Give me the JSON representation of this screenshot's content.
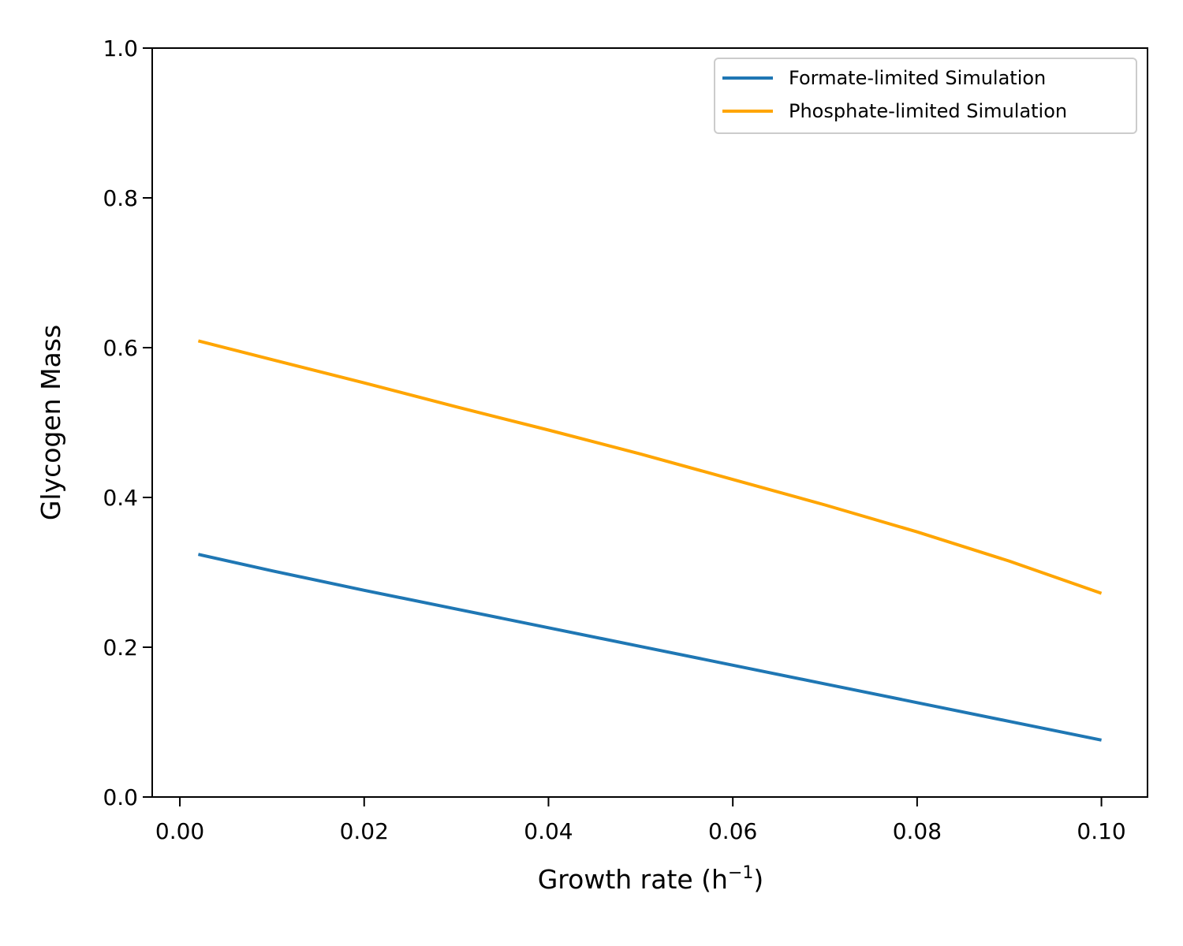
{
  "chart_data": {
    "type": "line",
    "title": "",
    "xlabel": "Growth rate (h",
    "xlabel_superscript": "−1",
    "xlabel_suffix": ")",
    "ylabel": "Glycogen Mass",
    "xlim": [
      -0.003,
      0.105
    ],
    "ylim": [
      0.0,
      1.0
    ],
    "x_ticks": [
      0.0,
      0.02,
      0.04,
      0.06,
      0.08,
      0.1
    ],
    "x_tick_labels": [
      "0.00",
      "0.02",
      "0.04",
      "0.06",
      "0.08",
      "0.10"
    ],
    "y_ticks": [
      0.0,
      0.2,
      0.4,
      0.6,
      0.8,
      1.0
    ],
    "y_tick_labels": [
      "0.0",
      "0.2",
      "0.4",
      "0.6",
      "0.8",
      "1.0"
    ],
    "grid": false,
    "legend_position": "top-right",
    "x": [
      0.002,
      0.01,
      0.02,
      0.03,
      0.04,
      0.05,
      0.06,
      0.07,
      0.08,
      0.09,
      0.1
    ],
    "series": [
      {
        "name": "Formate-limited Simulation",
        "color": "#1f77b4",
        "values": [
          0.324,
          0.302,
          0.276,
          0.251,
          0.226,
          0.201,
          0.176,
          0.151,
          0.126,
          0.101,
          0.076
        ]
      },
      {
        "name": "Phosphate-limited Simulation",
        "color": "#ffa500",
        "values": [
          0.609,
          0.584,
          0.553,
          0.521,
          0.49,
          0.458,
          0.424,
          0.39,
          0.354,
          0.315,
          0.272
        ]
      }
    ]
  }
}
